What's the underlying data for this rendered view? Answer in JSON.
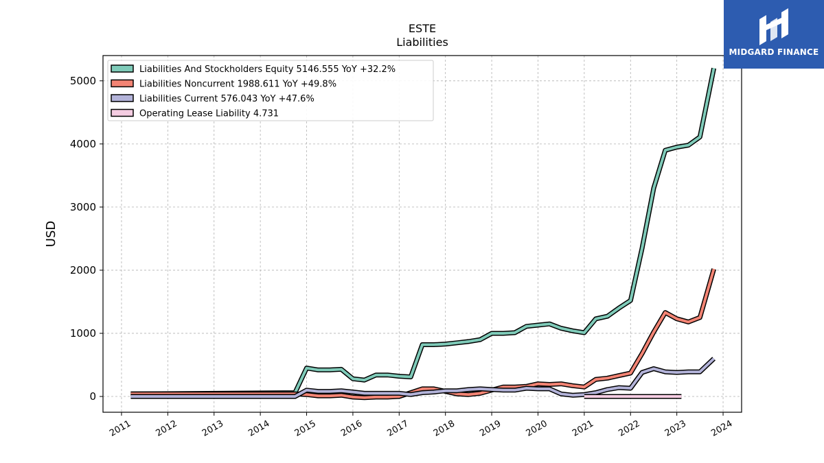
{
  "logo": {
    "text": "MIDGARD FINANCE",
    "color": "#2d5cb0"
  },
  "chart_data": {
    "type": "line",
    "title": "ESTE",
    "subtitle": "Liabilities",
    "xlabel": "",
    "ylabel": "USD",
    "xlim": [
      2010.6,
      2024.4
    ],
    "ylim": [
      -250,
      5400
    ],
    "x_ticks": [
      "2011",
      "2012",
      "2013",
      "2014",
      "2015",
      "2016",
      "2017",
      "2018",
      "2019",
      "2020",
      "2021",
      "2022",
      "2023",
      "2024"
    ],
    "y_ticks": [
      0,
      1000,
      2000,
      3000,
      4000,
      5000
    ],
    "grid": true,
    "legend_position": "top-left",
    "series": [
      {
        "name": "Liabilities And Stockholders Equity",
        "legend": "Liabilities And Stockholders Equity  5146.555 YoY +32.2%",
        "color": "#7fcbb9",
        "x": [
          2011.2,
          2014.75,
          2015.0,
          2015.25,
          2015.5,
          2015.75,
          2016.0,
          2016.25,
          2016.5,
          2016.75,
          2017.0,
          2017.25,
          2017.5,
          2017.75,
          2018.0,
          2018.25,
          2018.5,
          2018.75,
          2019.0,
          2019.25,
          2019.5,
          2019.75,
          2020.0,
          2020.25,
          2020.5,
          2020.75,
          2021.0,
          2021.25,
          2021.5,
          2021.75,
          2022.0,
          2022.25,
          2022.5,
          2022.75,
          2023.0,
          2023.25,
          2023.5,
          2023.8
        ],
        "y": [
          40,
          60,
          450,
          420,
          420,
          430,
          280,
          260,
          340,
          340,
          320,
          310,
          820,
          820,
          830,
          850,
          870,
          900,
          1000,
          1000,
          1010,
          1110,
          1130,
          1150,
          1080,
          1040,
          1010,
          1230,
          1270,
          1400,
          1520,
          2350,
          3300,
          3900,
          3950,
          3980,
          4110,
          5200
        ]
      },
      {
        "name": "Liabilities Noncurrent",
        "legend": "Liabilities Noncurrent  1988.611 YoY +49.8%",
        "color": "#f38474",
        "x": [
          2011.2,
          2014.75,
          2015.0,
          2015.25,
          2015.5,
          2015.75,
          2016.0,
          2016.25,
          2016.5,
          2016.75,
          2017.0,
          2017.25,
          2017.5,
          2017.75,
          2018.0,
          2018.25,
          2018.5,
          2018.75,
          2019.0,
          2019.25,
          2019.5,
          2019.75,
          2020.0,
          2020.25,
          2020.5,
          2020.75,
          2021.0,
          2021.25,
          2021.5,
          2021.75,
          2022.0,
          2022.25,
          2022.5,
          2022.75,
          2023.0,
          2023.25,
          2023.5,
          2023.8
        ],
        "y": [
          40,
          40,
          30,
          10,
          10,
          20,
          -10,
          -20,
          -10,
          -10,
          0,
          60,
          120,
          120,
          80,
          40,
          30,
          50,
          100,
          150,
          150,
          160,
          200,
          190,
          200,
          170,
          150,
          270,
          290,
          330,
          370,
          680,
          1020,
          1330,
          1230,
          1180,
          1250,
          2020
        ]
      },
      {
        "name": "Liabilities Current",
        "legend": "Liabilities Current  576.043 YoY +47.6%",
        "color": "#b3b3d9",
        "x": [
          2011.2,
          2014.75,
          2015.0,
          2015.25,
          2015.5,
          2015.75,
          2016.0,
          2016.25,
          2016.5,
          2016.75,
          2017.0,
          2017.25,
          2017.5,
          2017.75,
          2018.0,
          2018.25,
          2018.5,
          2018.75,
          2019.0,
          2019.25,
          2019.5,
          2019.75,
          2020.0,
          2020.25,
          2020.5,
          2020.75,
          2021.0,
          2021.25,
          2021.5,
          2021.75,
          2022.0,
          2022.25,
          2022.5,
          2022.75,
          2023.0,
          2023.25,
          2023.5,
          2023.8
        ],
        "y": [
          0,
          0,
          100,
          80,
          80,
          90,
          70,
          50,
          50,
          50,
          50,
          30,
          60,
          70,
          90,
          90,
          110,
          120,
          110,
          100,
          100,
          130,
          120,
          120,
          40,
          20,
          30,
          60,
          110,
          140,
          130,
          380,
          440,
          390,
          380,
          390,
          390,
          600
        ]
      },
      {
        "name": "Operating Lease Liability",
        "legend": "Operating Lease Liability  4.731",
        "color": "#f5cde2",
        "x": [
          2021.0,
          2023.1
        ],
        "y": [
          0,
          0
        ]
      }
    ]
  }
}
